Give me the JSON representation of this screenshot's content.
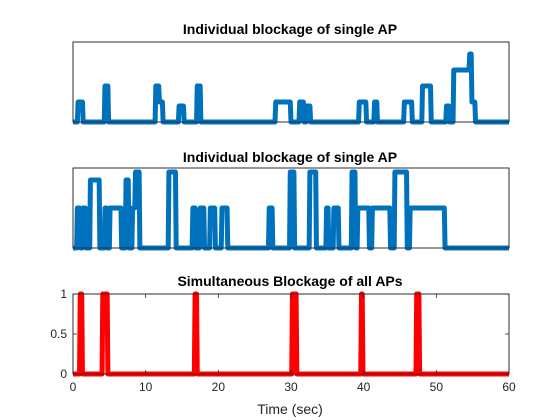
{
  "chart_data": [
    {
      "type": "line",
      "title": "Individual blockage of single AP",
      "xlabel": "",
      "ylabel": "",
      "xlim": [
        0,
        60
      ],
      "ylim": [
        0,
        1
      ],
      "show_ticks": false,
      "series_color": "#0072BD",
      "series": [
        {
          "x": [
            0,
            0.6,
            0.7,
            1.3,
            1.4,
            4.3,
            4.4,
            4.8,
            4.9,
            11.3,
            11.4,
            11.8,
            11.9,
            12.3,
            12.4,
            14.5,
            14.6,
            15.2,
            15.3,
            17.0,
            17.1,
            17.5,
            17.6,
            27.8,
            27.9,
            29.9,
            30.0,
            31.1,
            31.2,
            31.7,
            31.8,
            32.1,
            32.2,
            32.6,
            32.7,
            39.3,
            39.4,
            40.3,
            40.4,
            41.4,
            41.5,
            41.8,
            41.9,
            45.5,
            45.6,
            46.6,
            46.7,
            48.0,
            48.1,
            49.2,
            49.3,
            51.3,
            51.4,
            51.7,
            51.8,
            52.3,
            52.4,
            54.5,
            54.6,
            54.8,
            54.9,
            55.3,
            55.4,
            60
          ],
          "y": [
            0,
            0,
            0.25,
            0.25,
            0,
            0,
            0.45,
            0.45,
            0,
            0,
            0.45,
            0.45,
            0.25,
            0.25,
            0,
            0,
            0.2,
            0.2,
            0,
            0,
            0.45,
            0.45,
            0,
            0,
            0.25,
            0.25,
            0,
            0,
            0.25,
            0.25,
            0,
            0,
            0.2,
            0.2,
            0,
            0,
            0.25,
            0.25,
            0,
            0,
            0.25,
            0.25,
            0,
            0,
            0.25,
            0.25,
            0,
            0,
            0.45,
            0.45,
            0,
            0,
            0.2,
            0.2,
            0,
            0,
            0.65,
            0.65,
            0.85,
            0.85,
            0.25,
            0.25,
            0,
            0
          ]
        }
      ]
    },
    {
      "type": "line",
      "title": "Individual blockage of single AP",
      "xlabel": "",
      "ylabel": "",
      "xlim": [
        0,
        60
      ],
      "ylim": [
        0,
        1
      ],
      "show_ticks": false,
      "series_color": "#0072BD",
      "series": [
        {
          "x": [
            0,
            0.5,
            0.6,
            0.9,
            1.0,
            1.3,
            1.4,
            1.7,
            1.8,
            2.3,
            2.4,
            3.6,
            3.7,
            4.3,
            4.4,
            4.6,
            4.7,
            5.0,
            5.1,
            6.6,
            6.7,
            7.2,
            7.3,
            7.6,
            7.7,
            8.1,
            8.2,
            8.5,
            8.6,
            9.1,
            9.2,
            13.1,
            13.2,
            14.1,
            14.2,
            16.4,
            16.5,
            16.8,
            16.9,
            17.4,
            17.5,
            18.0,
            18.1,
            18.8,
            18.9,
            19.5,
            19.6,
            20.4,
            20.5,
            21.2,
            21.3,
            26.9,
            27.0,
            27.4,
            27.5,
            29.8,
            29.9,
            30.4,
            30.5,
            32.5,
            32.6,
            33.4,
            33.5,
            34.8,
            34.9,
            35.1,
            35.2,
            35.8,
            35.9,
            36.5,
            36.6,
            38.3,
            38.4,
            38.8,
            38.9,
            39.1,
            39.2,
            40.7,
            40.8,
            41.1,
            41.2,
            43.6,
            43.7,
            44.2,
            44.3,
            45.9,
            46.0,
            46.3,
            46.4,
            51.1,
            51.2,
            60
          ],
          "y": [
            0,
            0,
            0.5,
            0.5,
            0,
            0,
            0.5,
            0.5,
            0,
            0,
            0.85,
            0.85,
            0,
            0,
            0.5,
            0.5,
            0,
            0,
            0.5,
            0.5,
            0,
            0,
            0.85,
            0.85,
            0,
            0,
            0.5,
            0.5,
            0.95,
            0.95,
            0,
            0,
            0.95,
            0.95,
            0,
            0,
            0.5,
            0.5,
            0,
            0,
            0.5,
            0.5,
            0,
            0,
            0.5,
            0.5,
            0,
            0,
            0.5,
            0.5,
            0,
            0,
            0.5,
            0.5,
            0,
            0,
            0.95,
            0.95,
            0,
            0,
            0.95,
            0.95,
            0,
            0,
            0.5,
            0.5,
            0,
            0,
            0.5,
            0.5,
            0,
            0,
            0.95,
            0.95,
            0,
            0,
            0.5,
            0.5,
            0,
            0,
            0.5,
            0.5,
            0,
            0,
            0.95,
            0.95,
            0,
            0,
            0.5,
            0.5,
            0,
            0
          ]
        }
      ]
    },
    {
      "type": "line",
      "title": "Simultaneous Blockage of all APs",
      "xlabel": "Time (sec)",
      "ylabel": "",
      "xlim": [
        0,
        60
      ],
      "ylim": [
        0,
        1
      ],
      "xticks": [
        0,
        10,
        20,
        30,
        40,
        50,
        60
      ],
      "yticks": [
        0,
        0.5,
        1
      ],
      "yticklabels": [
        "0",
        "0.5",
        "1"
      ],
      "show_ticks": true,
      "series_color": "#FF0000",
      "series": [
        {
          "x": [
            0,
            0.9,
            1.0,
            1.2,
            1.3,
            4.0,
            4.1,
            4.7,
            4.8,
            16.7,
            16.8,
            17.0,
            17.1,
            30.1,
            30.2,
            30.7,
            30.8,
            39.6,
            39.7,
            39.8,
            39.9,
            47.2,
            47.3,
            47.6,
            47.7,
            60
          ],
          "y": [
            0,
            0,
            1,
            1,
            0,
            0,
            1,
            1,
            0,
            0,
            1,
            1,
            0,
            0,
            1,
            1,
            0,
            0,
            1,
            1,
            0,
            0,
            1,
            1,
            0,
            0
          ]
        }
      ]
    }
  ]
}
